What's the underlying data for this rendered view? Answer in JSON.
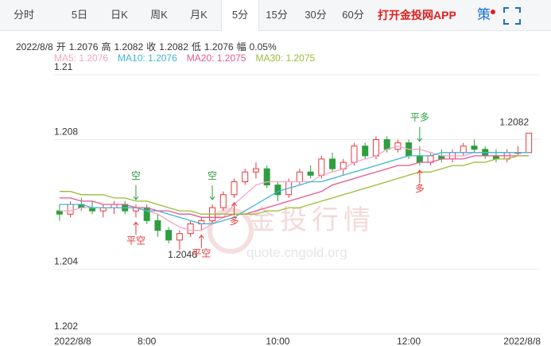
{
  "tabs": [
    "分时",
    "5日",
    "日K",
    "周K",
    "月K",
    "5分",
    "15分",
    "30分",
    "60分"
  ],
  "active_tab": 5,
  "app_link": "打开金投网APP",
  "strategy": "策",
  "info": {
    "date": "2022/8/8",
    "items": [
      {
        "k": "开",
        "v": "1.2076"
      },
      {
        "k": "高",
        "v": "1.2082"
      },
      {
        "k": "收",
        "v": "1.2082"
      },
      {
        "k": "低",
        "v": "1.2076"
      },
      {
        "k": "幅",
        "v": "0.05%"
      }
    ]
  },
  "watermark": {
    "brand": "金投行情",
    "url": "quote.cngold.org"
  },
  "chart_data": {
    "type": "candlestick",
    "up_color": "#e8393c",
    "down_color": "#2e9e3e",
    "ylim": [
      1.202,
      1.21
    ],
    "yticks": [
      1.202,
      1.204,
      1.208,
      1.21
    ],
    "grid": true,
    "categories": [
      "2022/8/8",
      null,
      null,
      null,
      null,
      null,
      null,
      null,
      "8:00",
      null,
      null,
      null,
      null,
      null,
      null,
      null,
      null,
      null,
      null,
      null,
      "10:00",
      null,
      null,
      null,
      null,
      null,
      null,
      null,
      null,
      null,
      null,
      null,
      "12:00",
      null,
      null,
      null,
      null,
      null,
      null,
      null,
      null,
      null,
      null,
      "2022/8/8"
    ],
    "open": [
      1.2058,
      1.2057,
      1.206,
      1.2059,
      1.2058,
      1.2059,
      1.206,
      1.2058,
      1.2059,
      1.2055,
      1.2052,
      1.2049,
      1.2051,
      1.2054,
      1.2055,
      1.2059,
      1.2063,
      1.2067,
      1.207,
      1.2071,
      1.2066,
      1.2063,
      1.2067,
      1.207,
      1.2069,
      1.2074,
      1.2071,
      1.2073,
      1.2078,
      1.2075,
      1.208,
      1.2077,
      1.2079,
      1.2075,
      1.2073,
      1.2075,
      1.2074,
      1.2076,
      1.2078,
      1.2077,
      1.2075,
      1.2074,
      1.2076,
      1.2076
    ],
    "high": [
      1.206,
      1.2061,
      1.2062,
      1.2061,
      1.206,
      1.2061,
      1.2061,
      1.206,
      1.206,
      1.2057,
      1.2053,
      1.2052,
      1.2055,
      1.2056,
      1.206,
      1.2064,
      1.2068,
      1.2071,
      1.2073,
      1.2072,
      1.2067,
      1.2068,
      1.2071,
      1.2072,
      1.2075,
      1.2076,
      1.2074,
      1.2079,
      1.2079,
      1.2081,
      1.2081,
      1.208,
      1.208,
      1.2078,
      1.2076,
      1.2077,
      1.2077,
      1.2079,
      1.208,
      1.2078,
      1.2077,
      1.2077,
      1.2078,
      1.2082
    ],
    "low": [
      1.2055,
      1.2056,
      1.2058,
      1.2057,
      1.2056,
      1.2057,
      1.2057,
      1.2056,
      1.2054,
      1.205,
      1.2048,
      1.2046,
      1.205,
      1.2052,
      1.2054,
      1.2058,
      1.2062,
      1.2066,
      1.2068,
      1.2065,
      1.2061,
      1.2062,
      1.2066,
      1.2068,
      1.2068,
      1.207,
      1.2069,
      1.2072,
      1.2074,
      1.2074,
      1.2076,
      1.2076,
      1.2074,
      1.2072,
      1.2072,
      1.2073,
      1.2073,
      1.2075,
      1.2076,
      1.2074,
      1.2073,
      1.2073,
      1.2075,
      1.2076
    ],
    "close": [
      1.2057,
      1.206,
      1.2059,
      1.2058,
      1.2059,
      1.206,
      1.2058,
      1.2059,
      1.2055,
      1.2052,
      1.2049,
      1.2051,
      1.2054,
      1.2055,
      1.2059,
      1.2063,
      1.2067,
      1.207,
      1.2071,
      1.2066,
      1.2063,
      1.2067,
      1.207,
      1.2069,
      1.2074,
      1.2071,
      1.2073,
      1.2078,
      1.2075,
      1.208,
      1.2077,
      1.2079,
      1.2075,
      1.2073,
      1.2075,
      1.2074,
      1.2076,
      1.2078,
      1.2077,
      1.2075,
      1.2074,
      1.2076,
      1.2076,
      1.2082
    ],
    "lines": [
      {
        "name": "MA5",
        "legend": "MA5: 1.2076",
        "color": "#f4a6c6",
        "values": [
          1.2058,
          1.2058,
          1.2059,
          1.2059,
          1.2059,
          1.2059,
          1.2059,
          1.2059,
          1.2058,
          1.2057,
          1.2055,
          1.2053,
          1.2052,
          1.2052,
          1.2054,
          1.2056,
          1.206,
          1.2063,
          1.2066,
          1.2067,
          1.2067,
          1.2067,
          1.2067,
          1.2067,
          1.2069,
          1.207,
          1.2071,
          1.2073,
          1.2074,
          1.2075,
          1.2077,
          1.2078,
          1.2077,
          1.2077,
          1.2076,
          1.2075,
          1.2075,
          1.2075,
          1.2076,
          1.2076,
          1.2076,
          1.2076,
          1.2076,
          1.2076
        ]
      },
      {
        "name": "MA10",
        "legend": "MA10: 1.2076",
        "color": "#3cb6d6",
        "values": [
          1.206,
          1.206,
          1.206,
          1.2059,
          1.2059,
          1.2059,
          1.2059,
          1.2059,
          1.2058,
          1.2058,
          1.2057,
          1.2056,
          1.2055,
          1.2054,
          1.2054,
          1.2055,
          1.2056,
          1.2058,
          1.206,
          1.2062,
          1.2064,
          1.2065,
          1.2066,
          1.2067,
          1.2067,
          1.2068,
          1.2069,
          1.207,
          1.2071,
          1.2072,
          1.2073,
          1.2074,
          1.2075,
          1.2075,
          1.2075,
          1.2076,
          1.2076,
          1.2076,
          1.2076,
          1.2076,
          1.2076,
          1.2076,
          1.2076,
          1.2076
        ]
      },
      {
        "name": "MA20",
        "legend": "MA20: 1.2075",
        "color": "#e6578f",
        "values": [
          1.2062,
          1.2062,
          1.2061,
          1.2061,
          1.206,
          1.206,
          1.206,
          1.2059,
          1.2059,
          1.2058,
          1.2058,
          1.2057,
          1.2057,
          1.2056,
          1.2056,
          1.2056,
          1.2057,
          1.2057,
          1.2058,
          1.2059,
          1.206,
          1.2061,
          1.2062,
          1.2063,
          1.2064,
          1.2066,
          1.2067,
          1.2068,
          1.2069,
          1.207,
          1.2071,
          1.2072,
          1.2072,
          1.2073,
          1.2073,
          1.2074,
          1.2074,
          1.2074,
          1.2075,
          1.2075,
          1.2075,
          1.2075,
          1.2075,
          1.2075
        ]
      },
      {
        "name": "MA30",
        "legend": "MA30: 1.2075",
        "color": "#9bbb38",
        "values": [
          1.2064,
          1.2064,
          1.2063,
          1.2063,
          1.2063,
          1.2062,
          1.2062,
          1.2061,
          1.2061,
          1.206,
          1.2059,
          1.2058,
          1.2058,
          1.2057,
          1.2057,
          1.2057,
          1.2057,
          1.2057,
          1.2057,
          1.2058,
          1.2058,
          1.2059,
          1.2059,
          1.206,
          1.2061,
          1.2062,
          1.2063,
          1.2064,
          1.2065,
          1.2066,
          1.2067,
          1.2068,
          1.2069,
          1.207,
          1.207,
          1.2071,
          1.2072,
          1.2072,
          1.2073,
          1.2073,
          1.2074,
          1.2074,
          1.2075,
          1.2075
        ]
      }
    ],
    "annotations": [
      {
        "text": "空",
        "at": 7
      },
      {
        "text": "平空",
        "at": 7
      },
      {
        "text": "空",
        "at": 14
      },
      {
        "text": "平空",
        "at": 13
      },
      {
        "text": "多",
        "at": 16
      },
      {
        "text": "平多",
        "at": 33
      },
      {
        "text": "多",
        "at": 33
      }
    ]
  }
}
